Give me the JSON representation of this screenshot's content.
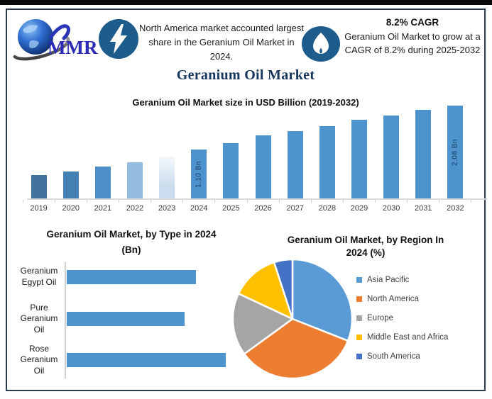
{
  "page": {
    "top_strip_color": "#0A0A0A",
    "frame_border_color": "#2C3B4D",
    "icon_circle_color": "#1E5C8C"
  },
  "header": {
    "logo_text": "MMR",
    "callout": "North America market accounted largest share in the Geranium Oil Market in 2024.",
    "cagr_title": "8.2% CAGR",
    "cagr_body": "Geranium Oil Market to grow at a CAGR of 8.2% during 2025-2032"
  },
  "main_title": "Geranium Oil Market",
  "chart_data": [
    {
      "type": "bar",
      "orientation": "vertical",
      "title": "Geranium Oil Market size in USD Billion (2019-2032)",
      "ylabel": "USD Billion",
      "categories": [
        "2019",
        "2020",
        "2021",
        "2022",
        "2023",
        "2024",
        "2025",
        "2026",
        "2027",
        "2028",
        "2029",
        "2030",
        "2031",
        "2032"
      ],
      "values": [
        0.52,
        0.6,
        0.71,
        0.81,
        0.94,
        1.1,
        1.24,
        1.41,
        1.5,
        1.62,
        1.76,
        1.86,
        1.98,
        2.08
      ],
      "point_labels": [
        "",
        "",
        "",
        "",
        "",
        "1.10 Bn",
        "",
        "",
        "",
        "",
        "",
        "",
        "",
        "2.08 Bn"
      ],
      "bar_colors": [
        "#41719C",
        "#4381B5",
        "#4E8FC7",
        "#94BBE2",
        "#CBDCEE",
        "#4D93CD",
        "#4D93CD",
        "#4D93CD",
        "#4D93CD",
        "#4D93CD",
        "#4D93CD",
        "#4D93CD",
        "#4D93CD",
        "#4D93CD"
      ],
      "fade_year": "2023",
      "ylim": [
        0,
        2.3
      ],
      "grid": false,
      "label_color": "#17375E"
    },
    {
      "type": "bar",
      "orientation": "horizontal",
      "title": "Geranium Oil Market, by Type in 2024 (Bn)",
      "title_lines": [
        "Geranium Oil Market, by Type in 2024",
        "(Bn)"
      ],
      "categories": [
        "Geranium Egypt Oil",
        "Pure Geranium Oil",
        "Rose Geranium Oil"
      ],
      "category_lines": [
        [
          "Geranium",
          "Egypt Oil"
        ],
        [
          "Pure",
          "Geranium",
          "Oil"
        ],
        [
          "Rose",
          "Geranium",
          "Oil"
        ]
      ],
      "values": [
        0.35,
        0.32,
        0.43
      ],
      "bar_color": "#4D93CD",
      "xlim": [
        0,
        0.5
      ],
      "grid": false
    },
    {
      "type": "pie",
      "title": "Geranium Oil Market, by Region In 2024 (%)",
      "title_lines": [
        "Geranium Oil Market, by Region In",
        "2024 (%)"
      ],
      "labels": [
        "Asia Pacific",
        "North America",
        "Europe",
        "Middle East and Africa",
        "South America"
      ],
      "values": [
        31,
        34,
        17,
        13,
        5
      ],
      "colors": [
        "#5B9BD5",
        "#ED7D31",
        "#A5A5A5",
        "#FFC000",
        "#4472C4"
      ],
      "legend_position": "right",
      "start_angle_deg": -90,
      "slice_border_color": "#FFFFFF"
    }
  ]
}
